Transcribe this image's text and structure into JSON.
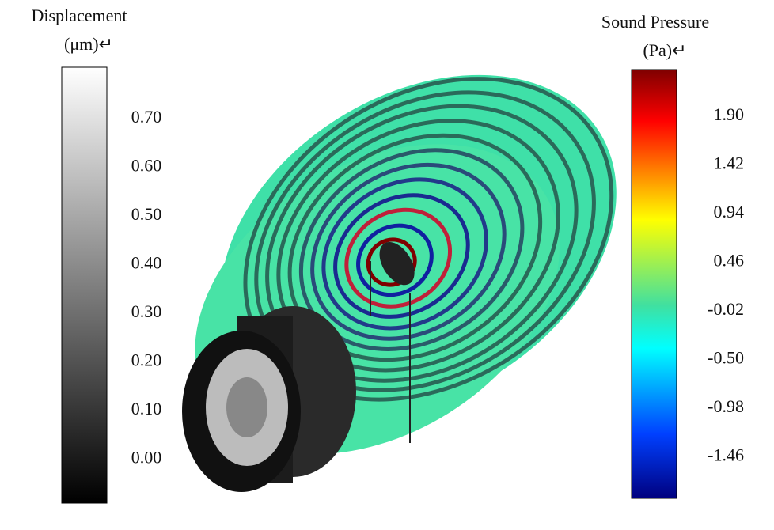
{
  "left_colorbar": {
    "title": "Displacement",
    "unit": "(μm)↵",
    "ticks": [
      "0.70",
      "0.60",
      "0.50",
      "0.40",
      "0.30",
      "0.20",
      "0.10",
      "0.00"
    ]
  },
  "right_colorbar": {
    "title": "Sound Pressure",
    "unit": "(Pa)↵",
    "ticks": [
      "1.90",
      "1.42",
      "0.94",
      "0.46",
      "-0.02",
      "-0.50",
      "-0.98",
      "-1.46"
    ]
  }
}
